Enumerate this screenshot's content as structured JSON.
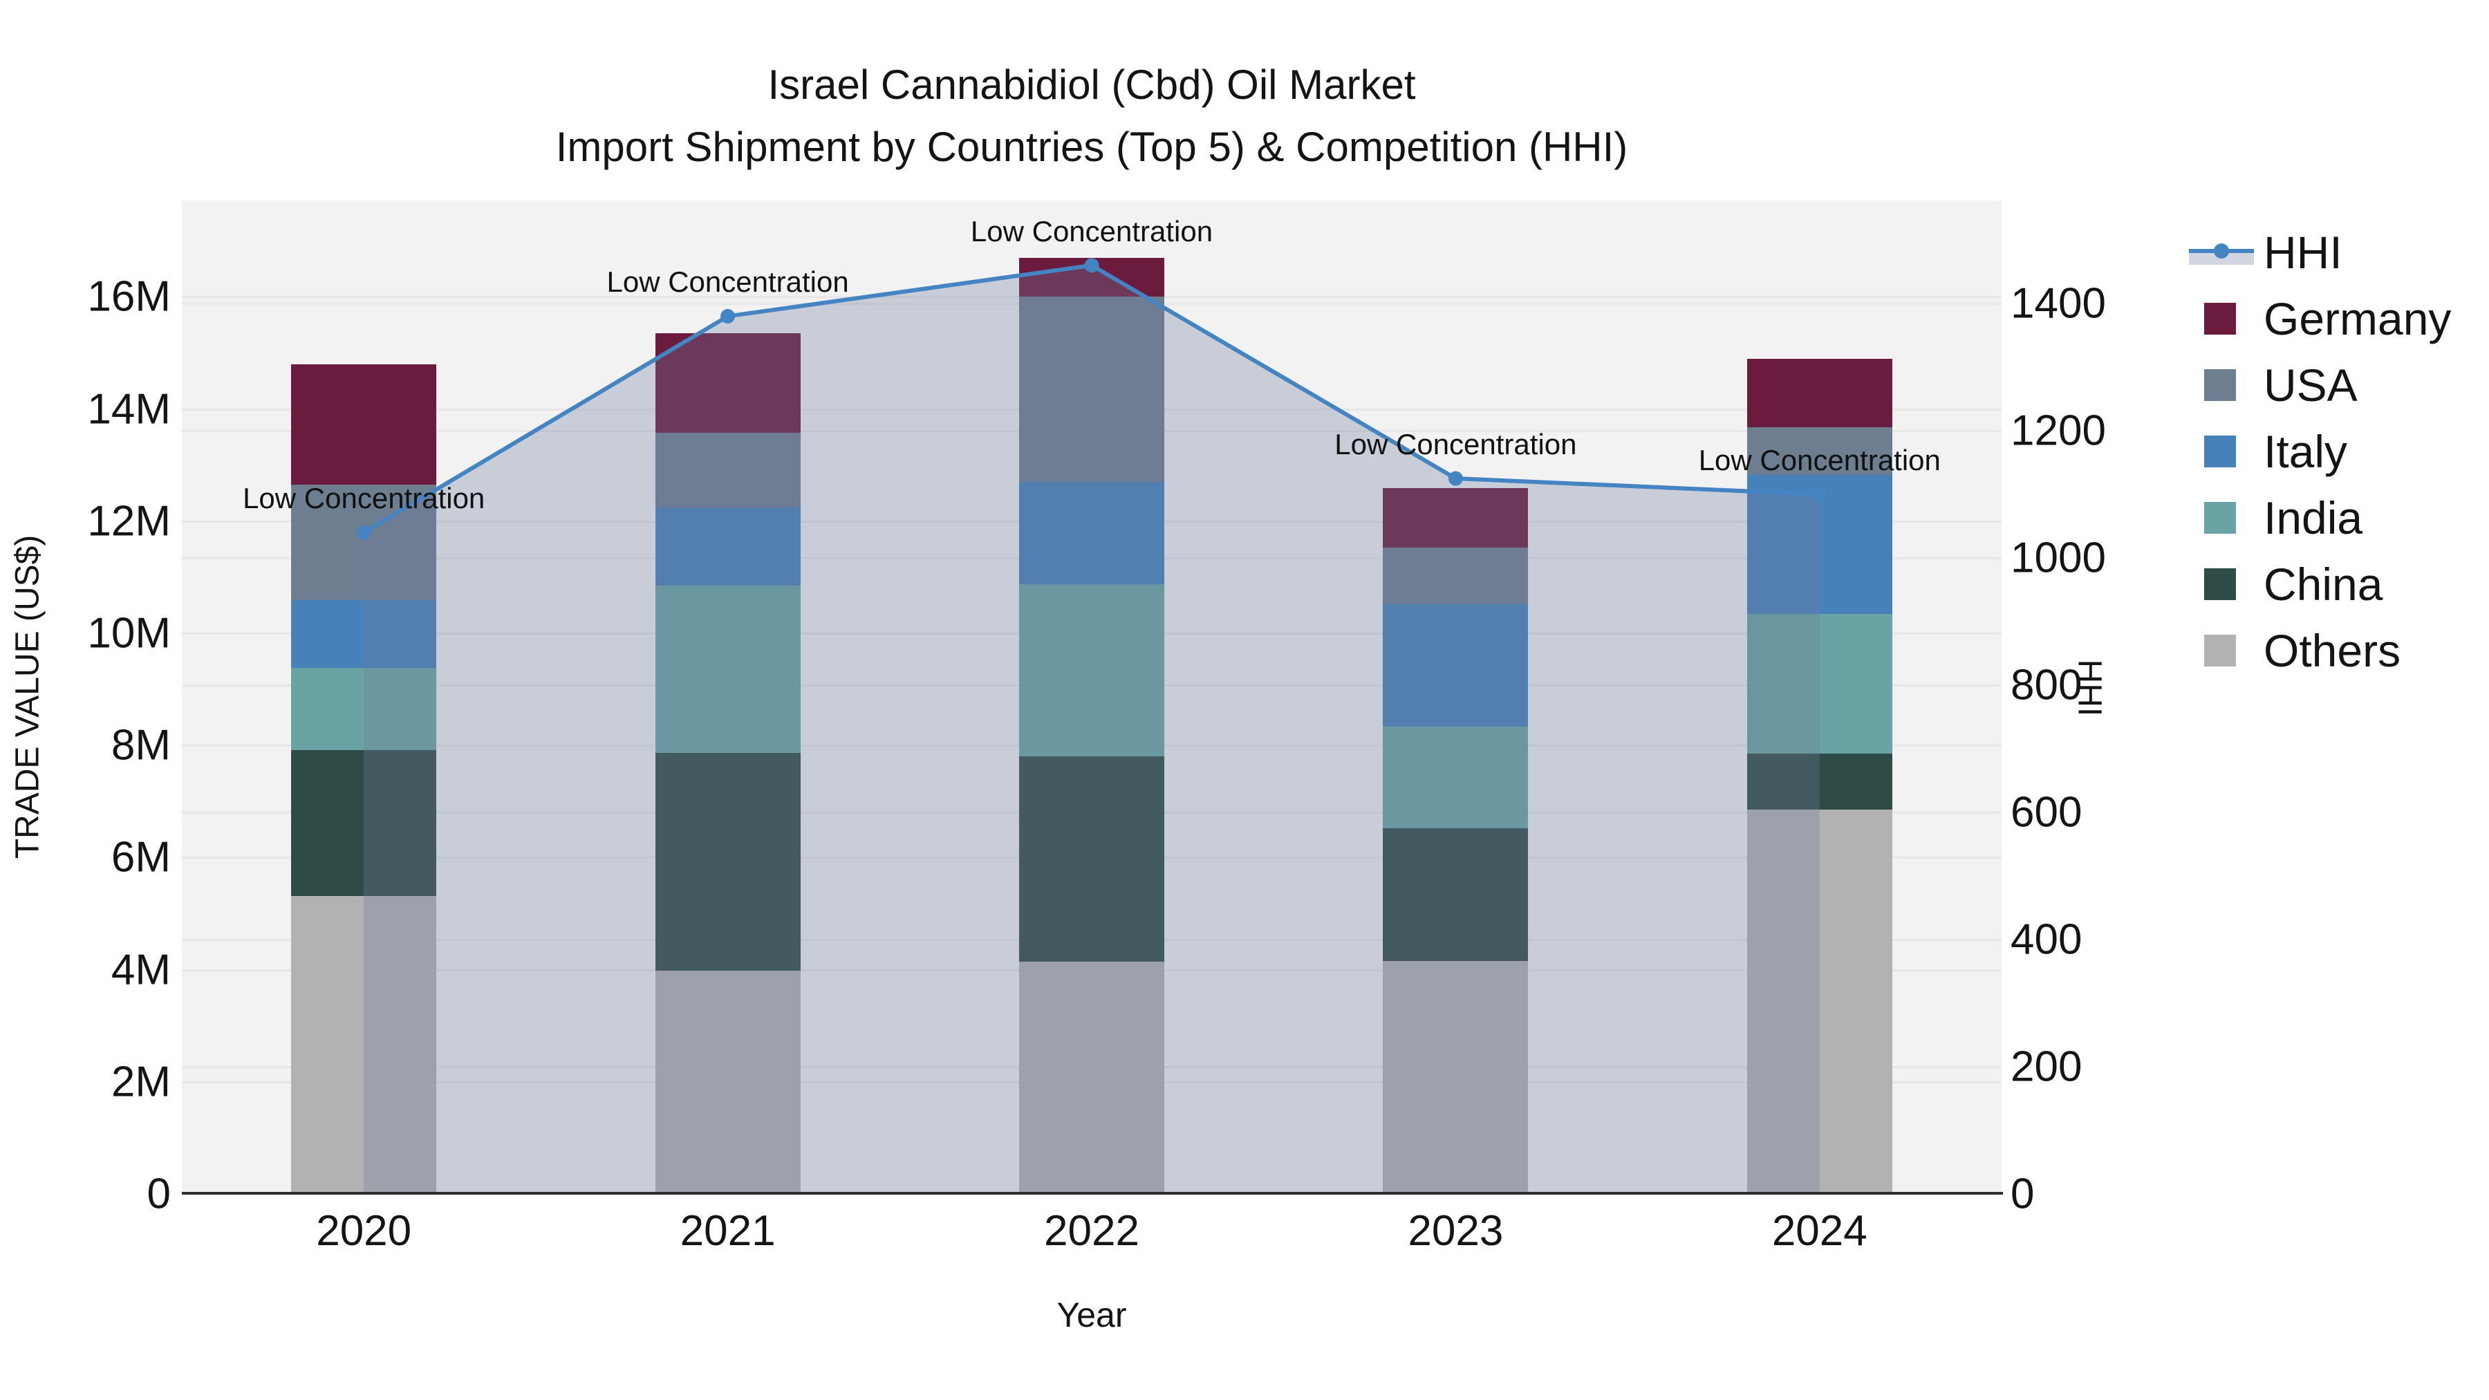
{
  "chart_data": {
    "type": "bar+line",
    "title": "Israel Cannabidiol (Cbd) Oil Market",
    "subtitle": "Import Shipment by Countries (Top 5) & Competition (HHI)",
    "xlabel": "Year",
    "ylabel_left": "TRADE VALUE (US$)",
    "ylabel_right": "HHI",
    "categories": [
      "2020",
      "2021",
      "2022",
      "2023",
      "2024"
    ],
    "stack_order_bottom_to_top": [
      "Others",
      "China",
      "India",
      "Italy",
      "USA",
      "Germany"
    ],
    "series": [
      {
        "name": "Others",
        "color": "#b2b2b2",
        "values": [
          5.31,
          3.98,
          4.14,
          4.16,
          6.86
        ]
      },
      {
        "name": "China",
        "color": "#2f4b47",
        "values": [
          2.61,
          3.89,
          3.67,
          2.36,
          1.0
        ]
      },
      {
        "name": "India",
        "color": "#6aa3a4",
        "values": [
          1.46,
          2.98,
          3.06,
          1.82,
          2.49
        ]
      },
      {
        "name": "Italy",
        "color": "#4781b9",
        "values": [
          1.21,
          1.39,
          1.83,
          2.18,
          2.48
        ]
      },
      {
        "name": "USA",
        "color": "#6e7e91",
        "values": [
          2.06,
          1.34,
          3.31,
          1.01,
          0.85
        ]
      },
      {
        "name": "Germany",
        "color": "#6b1b3d",
        "values": [
          2.15,
          1.77,
          0.69,
          1.06,
          1.21
        ]
      }
    ],
    "bar_totals_millions": [
      14.8,
      15.35,
      16.7,
      12.59,
      14.89
    ],
    "line_series": {
      "name": "HHI",
      "color": "#4484c2",
      "area_fill": "rgba(112,124,156,0.315)",
      "values": [
        1040,
        1380,
        1460,
        1125,
        1100
      ]
    },
    "annotations": [
      "Low Concentration",
      "Low Concentration",
      "Low Concentration",
      "Low Concentration",
      "Low Concentration"
    ],
    "axes": {
      "left": {
        "tick_labels": [
          "0",
          "2M",
          "4M",
          "6M",
          "8M",
          "10M",
          "12M",
          "14M",
          "16M"
        ],
        "tick_values": [
          0,
          2,
          4,
          6,
          8,
          10,
          12,
          14,
          16
        ],
        "max": 17.72,
        "units": "millions US$"
      },
      "right": {
        "tick_labels": [
          "0",
          "200",
          "400",
          "600",
          "800",
          "1000",
          "1200",
          "1400"
        ],
        "tick_values": [
          0,
          200,
          400,
          600,
          800,
          1000,
          1200,
          1400
        ],
        "max": 1562
      }
    },
    "legend": [
      {
        "label": "HHI",
        "type": "line-area"
      },
      {
        "label": "Germany",
        "type": "swatch",
        "color": "#6b1b3d"
      },
      {
        "label": "USA",
        "type": "swatch",
        "color": "#6e7e91"
      },
      {
        "label": "Italy",
        "type": "swatch",
        "color": "#4781b9"
      },
      {
        "label": "India",
        "type": "swatch",
        "color": "#6aa3a4"
      },
      {
        "label": "China",
        "type": "swatch",
        "color": "#2f4b47"
      },
      {
        "label": "Others",
        "type": "swatch",
        "color": "#b2b2b2"
      }
    ],
    "style": {
      "plot_bg": "#f2f2f2",
      "gridline": "#e7e7e9",
      "spine": "#2e2e2e",
      "text": "#141414"
    }
  }
}
